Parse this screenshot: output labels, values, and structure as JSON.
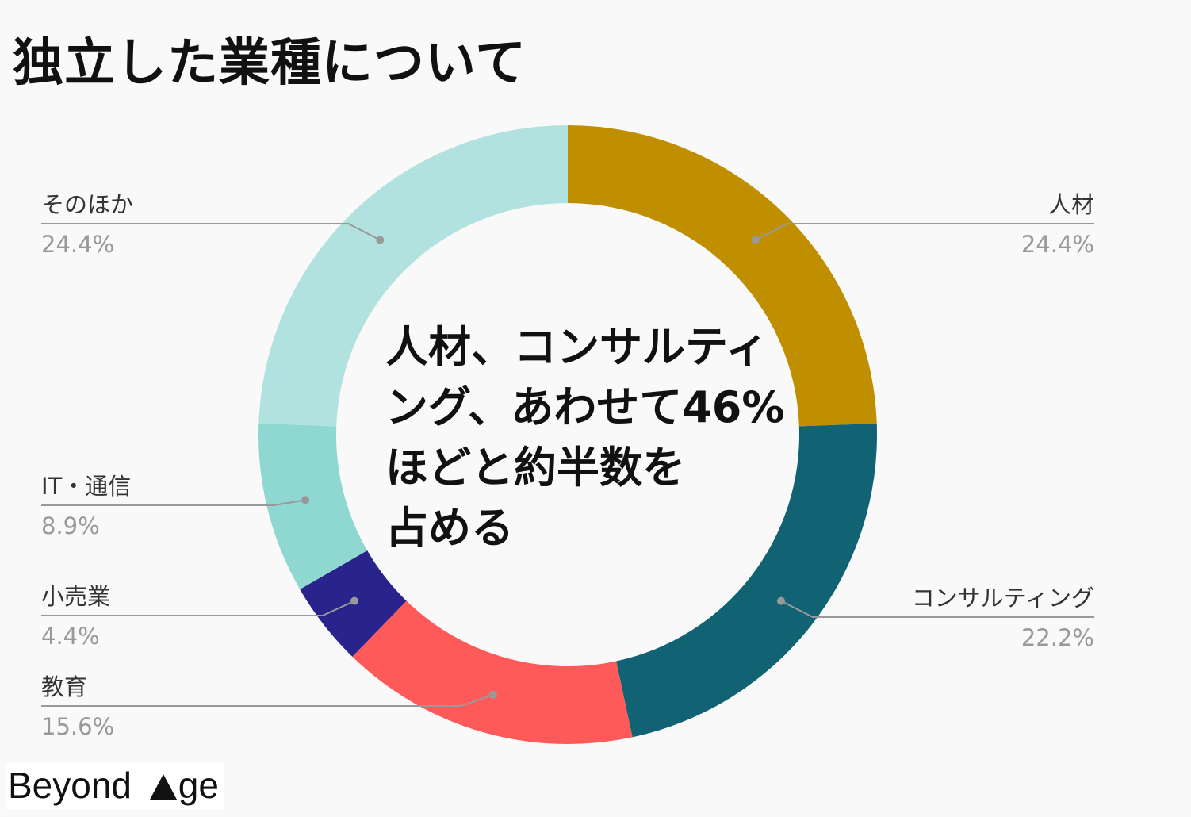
{
  "title": "独立した業種について",
  "center_lines": [
    "人材、コンサルティ",
    "ング、あわせて46%",
    "ほどと約半数を",
    "占める"
  ],
  "logo": {
    "text_left": "Beyond ",
    "text_right": "ge",
    "icon": "triangle-icon"
  },
  "chart_data": {
    "type": "pie",
    "variant": "donut",
    "title": "独立した業種について",
    "slices": [
      {
        "label": "人材",
        "percent_text": "24.4%",
        "value": 24.4,
        "color": "#bf8f00",
        "side": "right"
      },
      {
        "label": "コンサルティング",
        "percent_text": "22.2%",
        "value": 22.2,
        "color": "#116373",
        "side": "right"
      },
      {
        "label": "教育",
        "percent_text": "15.6%",
        "value": 15.6,
        "color": "#ff5a5a",
        "side": "left"
      },
      {
        "label": "小売業",
        "percent_text": "4.4%",
        "value": 4.4,
        "color": "#29238c",
        "side": "left"
      },
      {
        "label": "IT・通信",
        "percent_text": "8.9%",
        "value": 8.9,
        "color": "#8fd8d2",
        "side": "left"
      },
      {
        "label": "そのほか",
        "percent_text": "24.4%",
        "value": 24.4,
        "color": "#b1e2df",
        "side": "left"
      }
    ]
  }
}
